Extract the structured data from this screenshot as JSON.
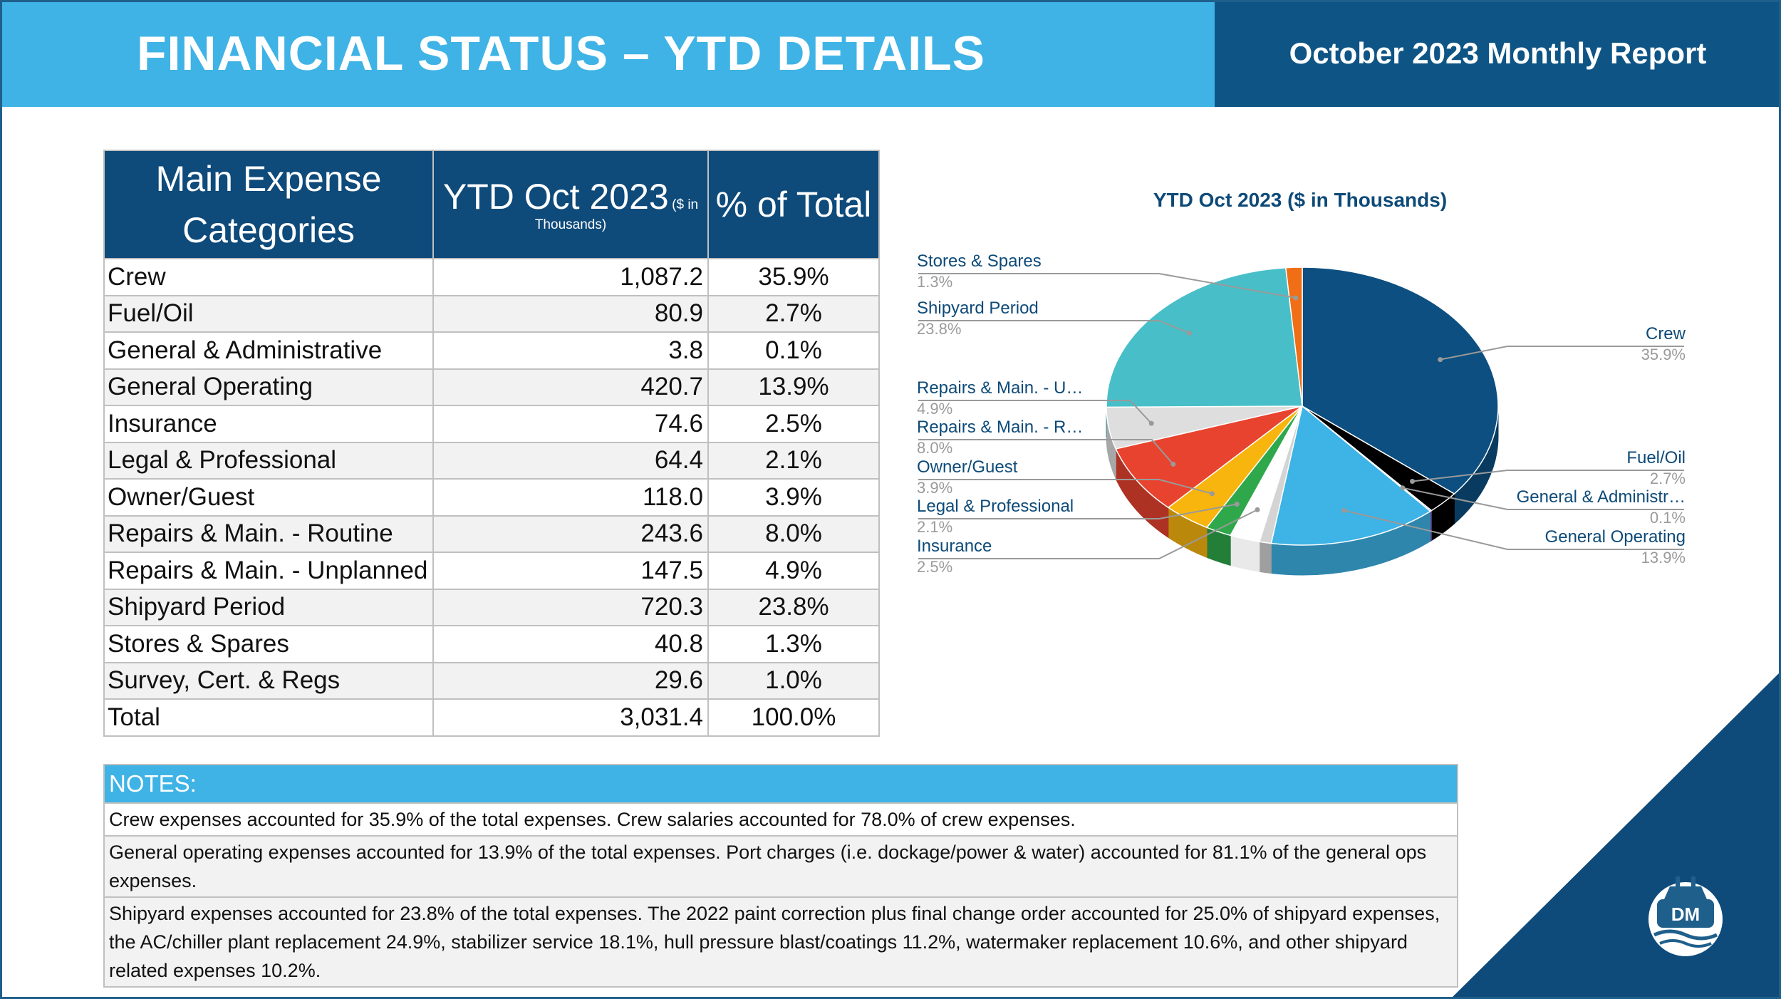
{
  "header": {
    "title": "FINANCIAL STATUS – YTD DETAILS",
    "report": "October 2023 Monthly Report"
  },
  "table": {
    "col1_header": "Main Expense Categories",
    "col2_header": "YTD Oct 2023",
    "col2_header_note": "($ in Thousands)",
    "col3_header": "% of Total",
    "rows": [
      {
        "category": "Crew",
        "value": "1,087.2",
        "pct": "35.9%"
      },
      {
        "category": "Fuel/Oil",
        "value": "80.9",
        "pct": "2.7%"
      },
      {
        "category": "General & Administrative",
        "value": "3.8",
        "pct": "0.1%"
      },
      {
        "category": "General Operating",
        "value": "420.7",
        "pct": "13.9%"
      },
      {
        "category": "Insurance",
        "value": "74.6",
        "pct": "2.5%"
      },
      {
        "category": "Legal & Professional",
        "value": "64.4",
        "pct": "2.1%"
      },
      {
        "category": "Owner/Guest",
        "value": "118.0",
        "pct": "3.9%"
      },
      {
        "category": "Repairs & Main. - Routine",
        "value": "243.6",
        "pct": "8.0%"
      },
      {
        "category": "Repairs & Main. - Unplanned",
        "value": "147.5",
        "pct": "4.9%"
      },
      {
        "category": "Shipyard Period",
        "value": "720.3",
        "pct": "23.8%"
      },
      {
        "category": "Stores & Spares",
        "value": "40.8",
        "pct": "1.3%"
      },
      {
        "category": "Survey, Cert. & Regs",
        "value": "29.6",
        "pct": "1.0%"
      }
    ],
    "total": {
      "category": "Total",
      "value": "3,031.4",
      "pct": "100.0%"
    }
  },
  "notes": {
    "header": "NOTES:",
    "items": [
      "Crew expenses accounted for 35.9% of the total expenses. Crew salaries accounted for 78.0% of crew expenses.",
      "General operating expenses accounted for 13.9% of the total expenses. Port charges (i.e. dockage/power & water) accounted for 81.1% of the general ops expenses.",
      "Shipyard expenses accounted for 23.8% of the total expenses. The 2022 paint correction plus final change order accounted for 25.0% of shipyard expenses, the AC/chiller plant replacement 24.9%, stabilizer service 18.1%, hull pressure blast/coatings 11.2%, watermaker replacement 10.6%, and other shipyard related expenses 10.2%."
    ]
  },
  "logo": {
    "text": "DM"
  },
  "chart_data": {
    "type": "pie",
    "title": "YTD Oct 2023 ($ in Thousands)",
    "slices": [
      {
        "label": "Crew",
        "display_label": "Crew",
        "value": 1087.2,
        "pct_label": "35.9%",
        "color": "#0c4f80"
      },
      {
        "label": "Fuel/Oil",
        "display_label": "Fuel/Oil",
        "value": 80.9,
        "pct_label": "2.7%",
        "color": "#000000"
      },
      {
        "label": "General & Administrative",
        "display_label": "General & Administr…",
        "value": 3.8,
        "pct_label": "0.1%",
        "color": "#7a3fa0"
      },
      {
        "label": "General Operating",
        "display_label": "General Operating",
        "value": 420.7,
        "pct_label": "13.9%",
        "color": "#3db3e6"
      },
      {
        "label": "Survey, Cert. & Regs",
        "display_label": "",
        "value": 29.6,
        "pct_label": "",
        "color": "#d4d4d4"
      },
      {
        "label": "Insurance",
        "display_label": "Insurance",
        "value": 74.6,
        "pct_label": "2.5%",
        "color": "#ffffff"
      },
      {
        "label": "Legal & Professional",
        "display_label": "Legal & Professional",
        "value": 64.4,
        "pct_label": "2.1%",
        "color": "#2ea84b"
      },
      {
        "label": "Owner/Guest",
        "display_label": "Owner/Guest",
        "value": 118.0,
        "pct_label": "3.9%",
        "color": "#f8b50d"
      },
      {
        "label": "Repairs & Main. - Routine",
        "display_label": "Repairs & Main. - R…",
        "value": 243.6,
        "pct_label": "8.0%",
        "color": "#e8432f"
      },
      {
        "label": "Repairs & Main. - Unplanned",
        "display_label": "Repairs & Main. - U…",
        "value": 147.5,
        "pct_label": "4.9%",
        "color": "#dedede"
      },
      {
        "label": "Shipyard Period",
        "display_label": "Shipyard Period",
        "value": 720.3,
        "pct_label": "23.8%",
        "color": "#48bfc8"
      },
      {
        "label": "Stores & Spares",
        "display_label": "Stores & Spares",
        "value": 40.8,
        "pct_label": "1.3%",
        "color": "#f06e15"
      },
      {
        "label": "Survey, Cert. & Regs (light)",
        "display_label": "",
        "value": 0,
        "pct_label": "",
        "color": "#8fd3e0"
      }
    ],
    "label_color": "#0d4a78",
    "pct_color": "#9a9a9a",
    "legend": "none (callout labels)"
  }
}
